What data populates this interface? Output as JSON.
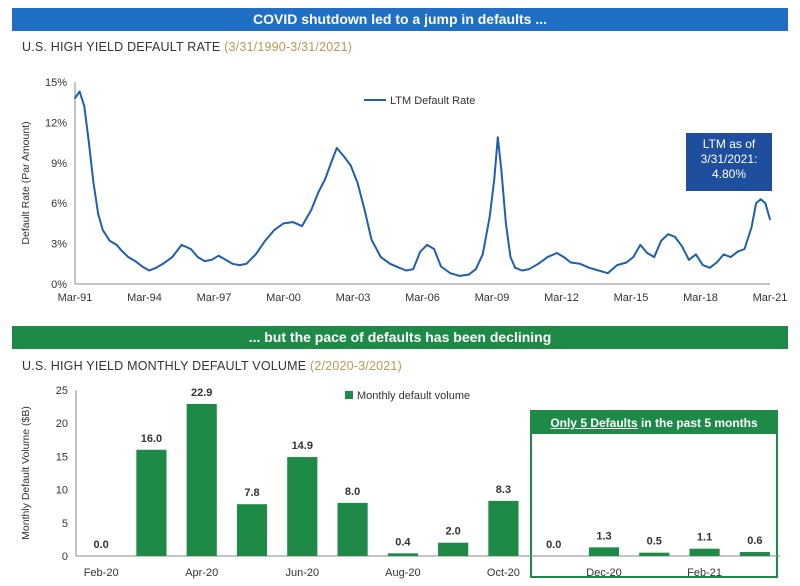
{
  "banners": {
    "top": "COVID shutdown led to a jump in defaults ...",
    "bottom": "... but the pace of defaults has been declining"
  },
  "colors": {
    "blue": "#1f5fb0",
    "green": "#1f8a47",
    "callout": "#1f4f9c"
  },
  "chart_data": [
    {
      "type": "line",
      "title": "U.S. HIGH YIELD DEFAULT RATE",
      "subtitle": "(3/31/1990-3/31/2021)",
      "ylabel": "Default Rate (Par Amount)",
      "ylim": [
        0,
        15
      ],
      "yticks": [
        "0%",
        "3%",
        "6%",
        "9%",
        "12%",
        "15%"
      ],
      "xlim": [
        1991.0,
        2021.0
      ],
      "xticks": [
        "Mar-91",
        "Mar-94",
        "Mar-97",
        "Mar-00",
        "Mar-03",
        "Mar-06",
        "Mar-09",
        "Mar-12",
        "Mar-15",
        "Mar-18",
        "Mar-21"
      ],
      "legend": "LTM Default Rate",
      "callout": [
        "LTM as of",
        "3/31/2021:",
        "4.80%"
      ],
      "series": [
        {
          "name": "LTM Default Rate",
          "x": [
            1991.0,
            1991.2,
            1991.4,
            1991.6,
            1991.8,
            1992.0,
            1992.2,
            1992.5,
            1992.8,
            1993.0,
            1993.3,
            1993.6,
            1993.9,
            1994.2,
            1994.5,
            1994.8,
            1995.2,
            1995.6,
            1996.0,
            1996.3,
            1996.6,
            1996.9,
            1997.2,
            1997.5,
            1997.8,
            1998.1,
            1998.4,
            1998.8,
            1999.2,
            1999.6,
            2000.0,
            2000.4,
            2000.8,
            2001.2,
            2001.5,
            2001.8,
            2002.1,
            2002.3,
            2002.6,
            2002.9,
            2003.2,
            2003.5,
            2003.8,
            2004.2,
            2004.6,
            2005.0,
            2005.3,
            2005.6,
            2005.9,
            2006.2,
            2006.5,
            2006.8,
            2007.2,
            2007.6,
            2008.0,
            2008.3,
            2008.6,
            2008.9,
            2009.1,
            2009.25,
            2009.4,
            2009.6,
            2009.8,
            2010.0,
            2010.3,
            2010.6,
            2011.0,
            2011.4,
            2011.8,
            2012.1,
            2012.4,
            2012.8,
            2013.2,
            2013.6,
            2014.0,
            2014.4,
            2014.8,
            2015.1,
            2015.4,
            2015.7,
            2016.0,
            2016.3,
            2016.6,
            2016.9,
            2017.2,
            2017.5,
            2017.8,
            2018.1,
            2018.4,
            2018.7,
            2019.0,
            2019.3,
            2019.6,
            2019.9,
            2020.2,
            2020.4,
            2020.6,
            2020.8,
            2021.0
          ],
          "values": [
            13.8,
            14.3,
            13.2,
            10.5,
            7.5,
            5.2,
            4.0,
            3.2,
            2.9,
            2.5,
            2.0,
            1.7,
            1.3,
            1.0,
            1.2,
            1.5,
            2.0,
            2.9,
            2.6,
            2.0,
            1.7,
            1.8,
            2.1,
            1.8,
            1.5,
            1.4,
            1.5,
            2.2,
            3.2,
            4.0,
            4.5,
            4.6,
            4.3,
            5.5,
            6.8,
            7.8,
            9.2,
            10.1,
            9.5,
            8.8,
            7.5,
            5.5,
            3.3,
            2.0,
            1.5,
            1.2,
            1.0,
            1.1,
            2.4,
            2.9,
            2.6,
            1.3,
            0.8,
            0.6,
            0.7,
            1.1,
            2.2,
            5.0,
            7.8,
            10.9,
            8.5,
            4.5,
            2.0,
            1.2,
            1.0,
            1.1,
            1.5,
            2.0,
            2.3,
            2.0,
            1.6,
            1.5,
            1.2,
            1.0,
            0.8,
            1.4,
            1.6,
            2.0,
            2.9,
            2.3,
            2.0,
            3.2,
            3.7,
            3.5,
            2.8,
            1.8,
            2.2,
            1.4,
            1.2,
            1.6,
            2.2,
            2.0,
            2.4,
            2.6,
            4.2,
            6.0,
            6.3,
            6.0,
            4.8
          ]
        }
      ]
    },
    {
      "type": "bar",
      "title": "U.S. HIGH YIELD MONTHLY DEFAULT VOLUME",
      "subtitle": "(2/2020-3/2021)",
      "ylabel": "Monthly Default Volume ($B)",
      "ylim": [
        0,
        25
      ],
      "yticks": [
        "0",
        "5",
        "10",
        "15",
        "20",
        "25"
      ],
      "legend": "Monthly default volume",
      "categories": [
        "Feb-20",
        "Mar-20",
        "Apr-20",
        "May-20",
        "Jun-20",
        "Jul-20",
        "Aug-20",
        "Sep-20",
        "Oct-20",
        "Nov-20",
        "Dec-20",
        "Jan-21",
        "Feb-21",
        "Mar-21"
      ],
      "category_labels": [
        "Feb-20",
        "",
        "Apr-20",
        "",
        "Jun-20",
        "",
        "Aug-20",
        "",
        "Oct-20",
        "",
        "Dec-20",
        "",
        "Feb-21",
        ""
      ],
      "values": [
        0.0,
        16.0,
        22.9,
        7.8,
        14.9,
        8.0,
        0.4,
        2.0,
        8.3,
        0.0,
        1.3,
        0.5,
        1.1,
        0.6
      ],
      "value_labels": [
        "0.0",
        "16.0",
        "22.9",
        "7.8",
        "14.9",
        "8.0",
        "0.4",
        "2.0",
        "8.3",
        "0.0",
        "1.3",
        "0.5",
        "1.1",
        "0.6"
      ],
      "box_title_underlined": "Only 5 Defaults",
      "box_title_rest": " in the past 5 months"
    }
  ]
}
